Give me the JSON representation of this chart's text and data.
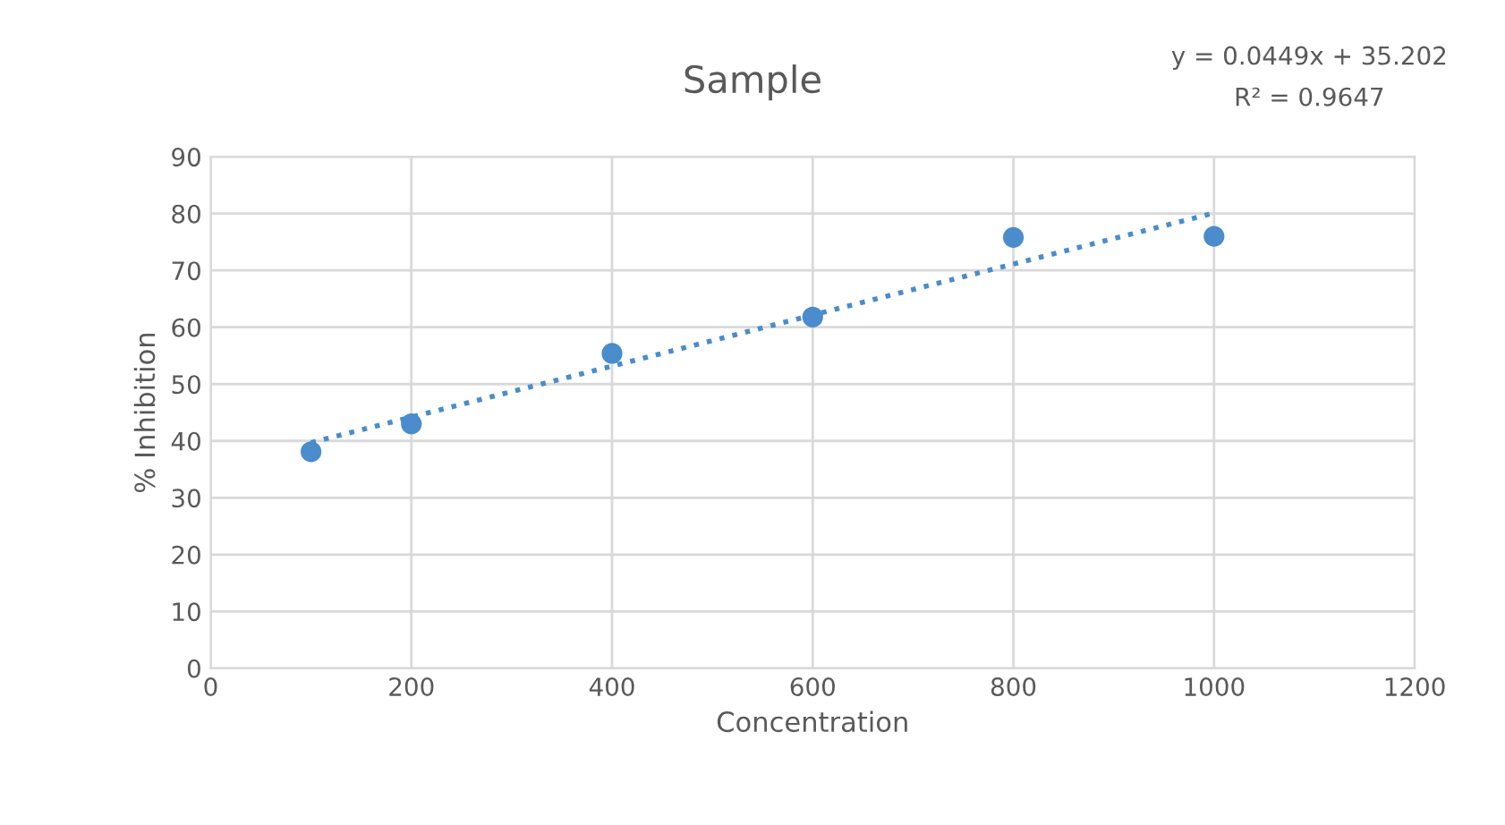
{
  "chart_data": {
    "type": "scatter",
    "title": "Sample",
    "xlabel": "Concentration",
    "ylabel": "% Inhibition",
    "series": [
      {
        "color": "#4a8ccc",
        "x": [
          100,
          200,
          400,
          600,
          800,
          1000
        ],
        "values": [
          38.1,
          43.0,
          55.4,
          61.8,
          75.8,
          76.0
        ],
        "marker": "circle"
      },
      {
        "type": "line",
        "color": "#4a8ccc",
        "x": [
          100,
          1000
        ],
        "values": [
          39.7,
          80.1
        ],
        "line_style": "dotted",
        "marker": "none"
      }
    ],
    "annotations": [
      "y = 0.0449x + 35.202",
      "R² = 0.9647"
    ],
    "xlim": [
      0,
      1200
    ],
    "xticks": [
      0,
      200,
      400,
      600,
      800,
      1000,
      1200
    ],
    "ylim": [
      0,
      90
    ],
    "yticks": [
      0,
      10,
      20,
      30,
      40,
      50,
      60,
      70,
      80,
      90
    ],
    "grid": true,
    "legend": false
  }
}
